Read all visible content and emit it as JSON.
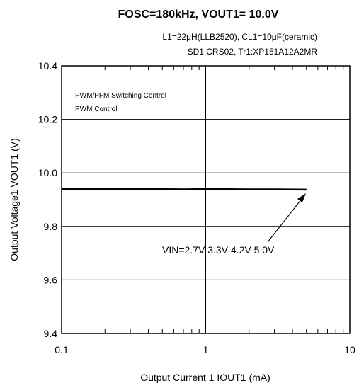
{
  "chart_data": {
    "type": "line",
    "title": "FOSC=180kHz, VOUT1= 10.0V",
    "subtitle_lines": [
      "L1=22μH(LLB2520), CL1=10μF(ceramic)",
      "SD1:CRS02, Tr1:XP151A12A2MR"
    ],
    "xlabel": "Output Current 1 IOUT1 (mA)",
    "ylabel": "Output Voltage1  VOUT1 (V)",
    "x_scale": "log",
    "xlim": [
      0.1,
      10
    ],
    "ylim": [
      9.4,
      10.4
    ],
    "x_ticks": [
      "0.1",
      "1",
      "10"
    ],
    "y_ticks": [
      "9.4",
      "9.6",
      "9.8",
      "10.0",
      "10.2",
      "10.4"
    ],
    "grid": true,
    "annotations": [
      "PWM/PFM Switching Control",
      "PWM  Control"
    ],
    "series_label": "VIN=2.7V 3.3V 4.2V 5.0V",
    "series": [
      {
        "x": [
          0.1,
          0.3,
          0.7,
          1,
          2,
          3,
          5
        ],
        "y": [
          9.938,
          9.938,
          9.937,
          9.938,
          9.938,
          9.937,
          9.936
        ]
      },
      {
        "x": [
          0.1,
          0.3,
          0.7,
          1,
          2,
          3,
          5
        ],
        "y": [
          9.94,
          9.939,
          9.938,
          9.939,
          9.939,
          9.938,
          9.937
        ]
      },
      {
        "x": [
          0.1,
          0.3,
          0.7,
          1,
          2,
          3,
          5
        ],
        "y": [
          9.941,
          9.94,
          9.939,
          9.94,
          9.939,
          9.939,
          9.938
        ]
      },
      {
        "x": [
          0.1,
          0.3,
          0.7,
          1,
          2,
          3,
          5
        ],
        "y": [
          9.942,
          9.941,
          9.94,
          9.941,
          9.94,
          9.94,
          9.939
        ]
      }
    ],
    "colors": {
      "line": "#000000",
      "grid": "#000000"
    }
  }
}
